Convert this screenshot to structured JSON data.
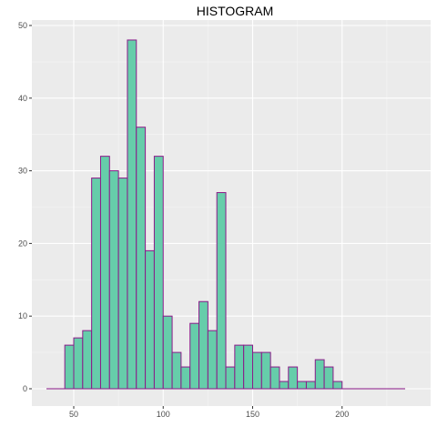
{
  "chart_data": {
    "type": "bar",
    "title": "HISTOGRAM",
    "xlabel": "",
    "ylabel": "",
    "x_ticks": [
      50,
      100,
      150,
      200
    ],
    "y_ticks": [
      0,
      10,
      20,
      30,
      40,
      50
    ],
    "xlim": [
      35,
      240
    ],
    "ylim": [
      0,
      50
    ],
    "bin_width": 5,
    "bin_starts": [
      35,
      40,
      45,
      50,
      55,
      60,
      65,
      70,
      75,
      80,
      85,
      90,
      95,
      100,
      105,
      110,
      115,
      120,
      125,
      130,
      135,
      140,
      145,
      150,
      155,
      160,
      165,
      170,
      175,
      180,
      185,
      190,
      195,
      200,
      205,
      210,
      215,
      220,
      225,
      230
    ],
    "counts": [
      0,
      0,
      6,
      7,
      8,
      29,
      32,
      30,
      29,
      48,
      36,
      19,
      32,
      10,
      5,
      3,
      9,
      12,
      8,
      27,
      3,
      6,
      6,
      5,
      5,
      3,
      1,
      3,
      1,
      1,
      4,
      3,
      1,
      0,
      0,
      0,
      0,
      0,
      0,
      0
    ],
    "fill_color": "#66cdaa",
    "outline_color": "#8b1a89",
    "panel_background": "#ebebeb",
    "grid": true
  }
}
